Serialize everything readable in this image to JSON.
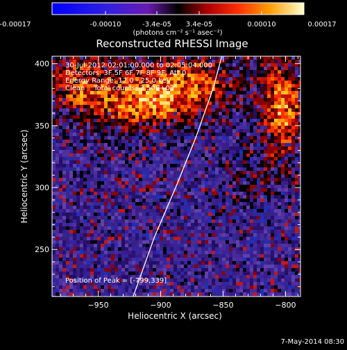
{
  "colorbar": {
    "tick_labels": [
      "-0.00017",
      "-0.00010",
      "-3.4e-05",
      "3.4e-05",
      "0.00010",
      "0.00017"
    ],
    "units_line": "(photons cm⁻² s⁻¹ asec⁻²)",
    "range": [
      -0.00017,
      0.00017
    ]
  },
  "chart_data": {
    "type": "heatmap",
    "title": "Reconstructed RHESSI Image",
    "xlabel": "Heliocentric X (arcsec)",
    "ylabel": "Heliocentric Y (arcsec)",
    "xlim": [
      -987,
      -788
    ],
    "ylim": [
      212,
      406
    ],
    "x_ticks": [
      {
        "value": -950,
        "label": "−950"
      },
      {
        "value": -900,
        "label": "−900"
      },
      {
        "value": -850,
        "label": "−850"
      },
      {
        "value": -800,
        "label": "−800"
      }
    ],
    "y_ticks": [
      {
        "value": 250,
        "label": "250"
      },
      {
        "value": 300,
        "label": "300"
      },
      {
        "value": 350,
        "label": "350"
      },
      {
        "value": 400,
        "label": "400"
      }
    ],
    "annotations": [
      "30-Jul-2012 02:01:00.000 to 02:05:04.000",
      "Detectors: 3F 5F 6F 7F 8F 9F, Att 0",
      "Energy Range: 12.0 - 25.0 keV",
      "Clean    Total counts: 3.50E+03"
    ],
    "peak_label": "Position of Peak = [-799,339]",
    "peak_position": [
      -799,
      339
    ],
    "limb_curve": [
      [
        -922,
        212
      ],
      [
        -905,
        260
      ],
      [
        -888,
        300
      ],
      [
        -872,
        340
      ],
      [
        -858,
        380
      ],
      [
        -851,
        406
      ]
    ]
  },
  "footer": {
    "date": "7-May-2014 08:30"
  }
}
